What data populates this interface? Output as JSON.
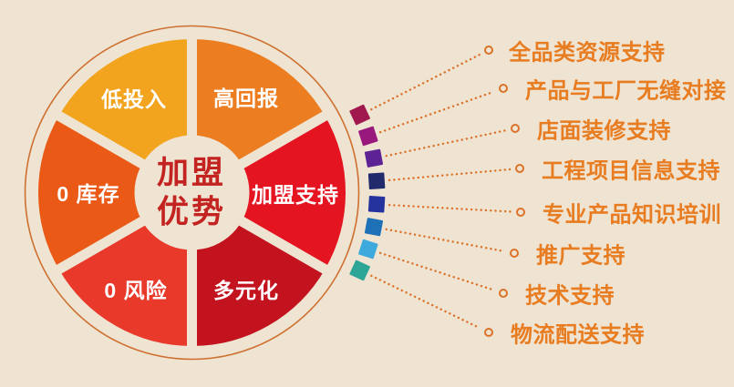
{
  "background_color": "#EFE3D2",
  "wheel": {
    "center_title_lines": [
      "加盟",
      "优势"
    ],
    "center_title_color": "#C32421",
    "ring_color": "#CE7030",
    "label_color": "#FFFFFF",
    "segments": [
      {
        "label": "低投入",
        "color": "#F2A41F"
      },
      {
        "label": "高回报",
        "color": "#EC7D21"
      },
      {
        "label": "加盟支持",
        "color": "#E41420"
      },
      {
        "label": "多元化",
        "color": "#C2131E"
      },
      {
        "label": "0 风险",
        "color": "#E8392B"
      },
      {
        "label": "0 库存",
        "color": "#EA5916"
      }
    ]
  },
  "connector": {
    "dot_color": "#DC7228",
    "square_colors": [
      "#A0184E",
      "#99187E",
      "#5D2394",
      "#212A6B",
      "#24339D",
      "#1E71B6",
      "#3DA9DC",
      "#2EA697"
    ]
  },
  "list": {
    "text_color": "#E87C20",
    "items": [
      {
        "label": "全品类资源支持"
      },
      {
        "label": "产品与工厂无缝对接"
      },
      {
        "label": "店面装修支持"
      },
      {
        "label": "工程项目信息支持"
      },
      {
        "label": "专业产品知识培训"
      },
      {
        "label": "推广支持"
      },
      {
        "label": "技术支持"
      },
      {
        "label": "物流配送支持"
      }
    ]
  }
}
